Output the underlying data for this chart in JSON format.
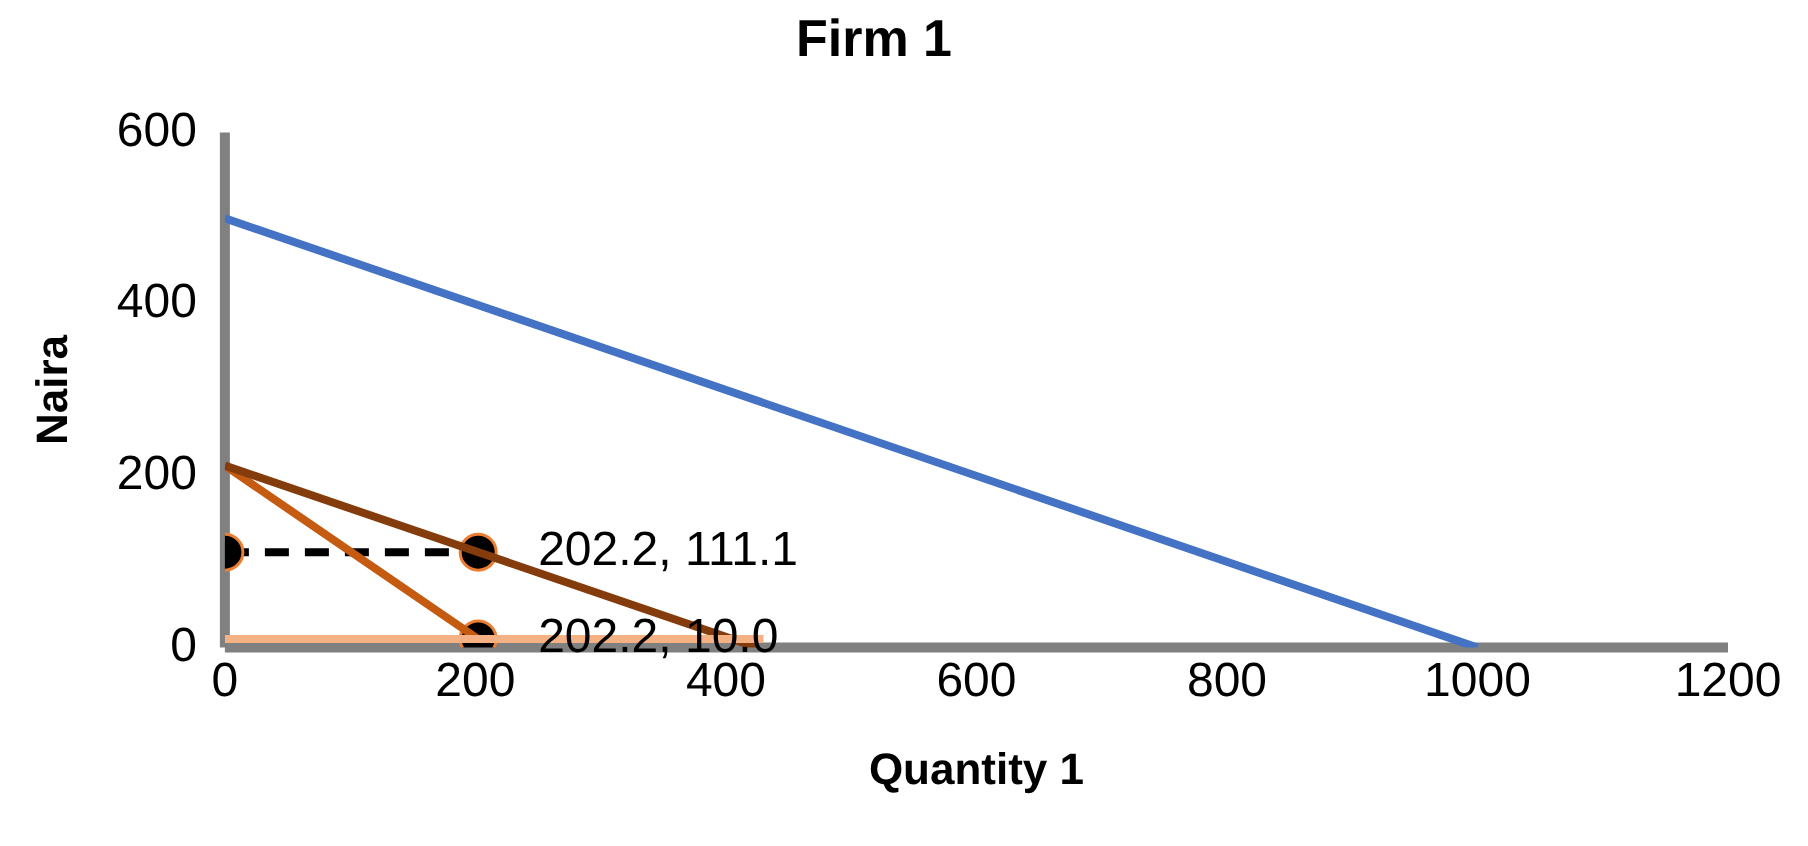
{
  "chart_data": {
    "type": "line",
    "title": "Firm 1",
    "xlabel": "Quantity 1",
    "ylabel": "Naira",
    "xlim": [
      0,
      1200
    ],
    "xticks": [
      0,
      200,
      400,
      600,
      800,
      1000,
      1200
    ],
    "ylim": [
      0,
      600
    ],
    "yticks": [
      0,
      200,
      400,
      600
    ],
    "grid": false,
    "legend": false,
    "marker": "none",
    "series": [
      {
        "type": "line",
        "x": [
          0,
          1000
        ],
        "values": [
          500,
          0
        ],
        "color": "#4472c4"
      },
      {
        "type": "line",
        "x": [
          0,
          430
        ],
        "values": [
          10,
          10
        ],
        "color": "#f4b183"
      },
      {
        "type": "line",
        "x": [
          0,
          425
        ],
        "values": [
          212,
          0
        ],
        "color": "#843c0c"
      },
      {
        "type": "line",
        "x": [
          0,
          202.2
        ],
        "values": [
          212,
          10
        ],
        "color": "#c55a11"
      },
      {
        "type": "line",
        "x": [
          0,
          202.2
        ],
        "values": [
          111.1,
          111.1
        ],
        "color": "#000000",
        "line_style": "dashed",
        "marker": "circle"
      },
      {
        "type": "scatter",
        "x": [
          202.2
        ],
        "values": [
          10
        ],
        "color": "#000000",
        "marker": "circle"
      }
    ],
    "annotations": [
      {
        "text": "202.2, 111.1",
        "x": 202.2,
        "y": 111.1
      },
      {
        "text": "202.2, 10.0",
        "x": 202.2,
        "y": 10
      }
    ]
  }
}
